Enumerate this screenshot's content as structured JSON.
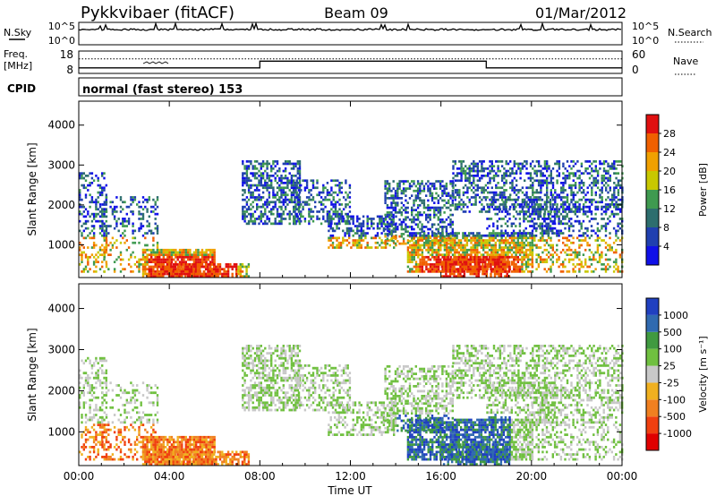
{
  "header": {
    "station": "Pykkvibaer (fitACF)",
    "beam": "Beam 09",
    "date": "01/Mar/2012"
  },
  "strips": {
    "nsky_label": "N.Sky",
    "nsky_ticks": [
      "10^5",
      "10^0"
    ],
    "nsearch_label": "N.Search",
    "nsearch_ticks": [
      "10^5",
      "10^0"
    ],
    "freq_label_1": "Freq.",
    "freq_label_2": "[MHz]",
    "freq_ticks": [
      "18",
      "8"
    ],
    "nave_label": "Nave",
    "nave_ticks": [
      "60",
      "0"
    ],
    "cpid_label": "CPID",
    "cpid_text": "normal (fast stereo) 153"
  },
  "chart_data": [
    {
      "type": "heatmap",
      "name": "power",
      "ylabel": "Slant Range [km]",
      "ylim": [
        180,
        4600
      ],
      "yticks": [
        "1000",
        "2000",
        "3000",
        "4000"
      ],
      "ytick_values": [
        1000,
        2000,
        3000,
        4000
      ],
      "xlabel": "",
      "xlim": [
        0,
        24
      ],
      "xticks": [
        "00:00",
        "04:00",
        "08:00",
        "12:00",
        "16:00",
        "20:00",
        "00:00"
      ],
      "xtick_values": [
        0,
        4,
        8,
        12,
        16,
        20,
        24
      ],
      "colorbar_label": "Power [dB]",
      "colorbar_ticks": [
        "4",
        "8",
        "12",
        "16",
        "20",
        "24",
        "28"
      ],
      "colorbar_colors": [
        "#1010e8",
        "#2040b0",
        "#2d6e6e",
        "#3f9a50",
        "#c8c800",
        "#f0a000",
        "#f06000",
        "#e01010"
      ]
    },
    {
      "type": "heatmap",
      "name": "velocity",
      "ylabel": "Slant Range [km]",
      "ylim": [
        180,
        4600
      ],
      "yticks": [
        "1000",
        "2000",
        "3000",
        "4000"
      ],
      "ytick_values": [
        1000,
        2000,
        3000,
        4000
      ],
      "xlabel": "Time UT",
      "xlim": [
        0,
        24
      ],
      "xticks": [
        "00:00",
        "04:00",
        "08:00",
        "12:00",
        "16:00",
        "20:00",
        "00:00"
      ],
      "xtick_values": [
        0,
        4,
        8,
        12,
        16,
        20,
        24
      ],
      "colorbar_label": "Velocity [m s⁻¹]",
      "colorbar_ticks": [
        "1000",
        "500",
        "100",
        "25",
        "-25",
        "-100",
        "-500",
        "-1000"
      ],
      "colorbar_colors": [
        "#2040c0",
        "#306ab0",
        "#409a40",
        "#70c040",
        "#c8c8c8",
        "#f0b020",
        "#f08020",
        "#f04010",
        "#e00000"
      ]
    }
  ],
  "time_series": {
    "nave_hours": [
      0,
      8,
      8,
      18,
      18,
      24
    ],
    "nave_values": [
      0.25,
      0.25,
      0.55,
      0.55,
      0.25,
      0.25
    ],
    "freq_dotted_level": 0.65
  }
}
